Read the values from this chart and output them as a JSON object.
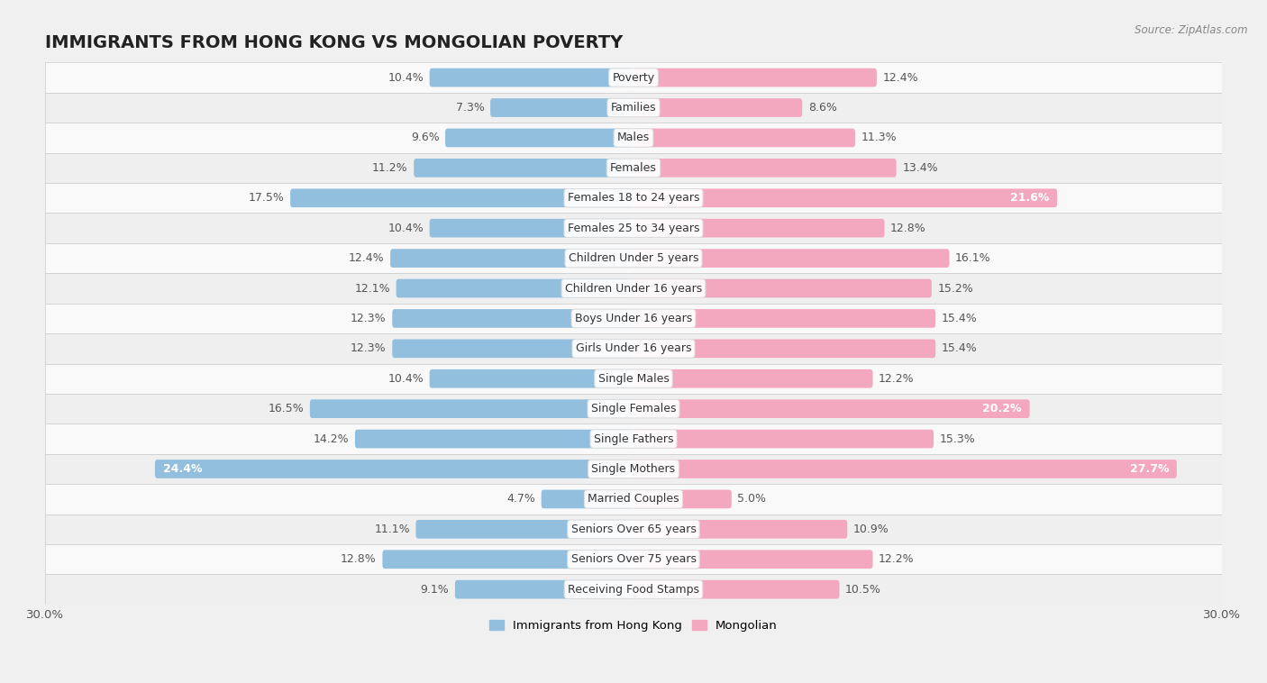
{
  "title": "IMMIGRANTS FROM HONG KONG VS MONGOLIAN POVERTY",
  "source": "Source: ZipAtlas.com",
  "categories": [
    "Poverty",
    "Families",
    "Males",
    "Females",
    "Females 18 to 24 years",
    "Females 25 to 34 years",
    "Children Under 5 years",
    "Children Under 16 years",
    "Boys Under 16 years",
    "Girls Under 16 years",
    "Single Males",
    "Single Females",
    "Single Fathers",
    "Single Mothers",
    "Married Couples",
    "Seniors Over 65 years",
    "Seniors Over 75 years",
    "Receiving Food Stamps"
  ],
  "hk_values": [
    10.4,
    7.3,
    9.6,
    11.2,
    17.5,
    10.4,
    12.4,
    12.1,
    12.3,
    12.3,
    10.4,
    16.5,
    14.2,
    24.4,
    4.7,
    11.1,
    12.8,
    9.1
  ],
  "mn_values": [
    12.4,
    8.6,
    11.3,
    13.4,
    21.6,
    12.8,
    16.1,
    15.2,
    15.4,
    15.4,
    12.2,
    20.2,
    15.3,
    27.7,
    5.0,
    10.9,
    12.2,
    10.5
  ],
  "hk_color": "#92bfde",
  "mn_color": "#f4a8c0",
  "background_color": "#f0f0f0",
  "row_color_even": "#f9f9f9",
  "row_color_odd": "#efefef",
  "bar_height": 0.62,
  "axis_max": 30.0,
  "legend_hk": "Immigrants from Hong Kong",
  "legend_mn": "Mongolian",
  "label_fontsize": 9,
  "category_fontsize": 9,
  "title_fontsize": 14,
  "hk_inside_threshold": 18.0,
  "mn_inside_threshold": 18.0
}
